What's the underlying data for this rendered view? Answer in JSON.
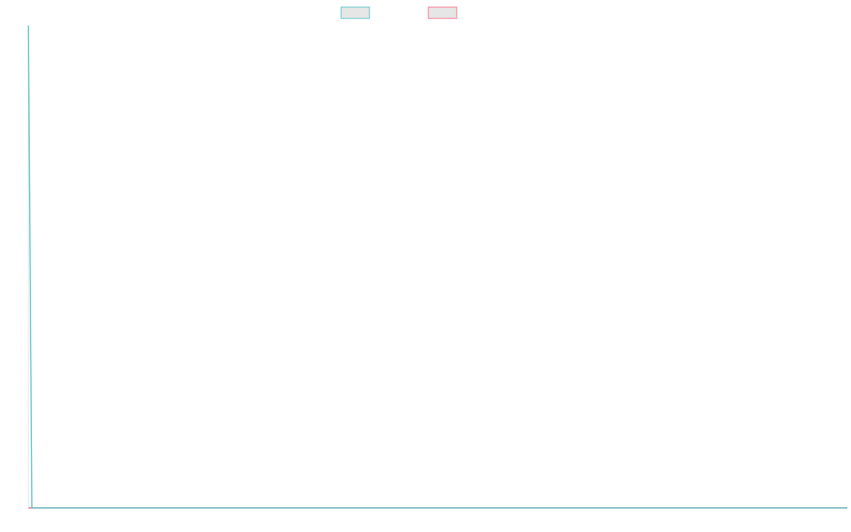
{
  "chart_data": {
    "type": "line",
    "x": [
      0,
      1,
      231
    ],
    "xlim": [
      0,
      231
    ],
    "ylim": [
      0,
      100
    ],
    "series": [
      {
        "color": "#4bc0c0",
        "values": [
          100,
          0,
          0
        ]
      },
      {
        "color": "#ff6384",
        "values": [
          0,
          0,
          0
        ]
      }
    ]
  }
}
